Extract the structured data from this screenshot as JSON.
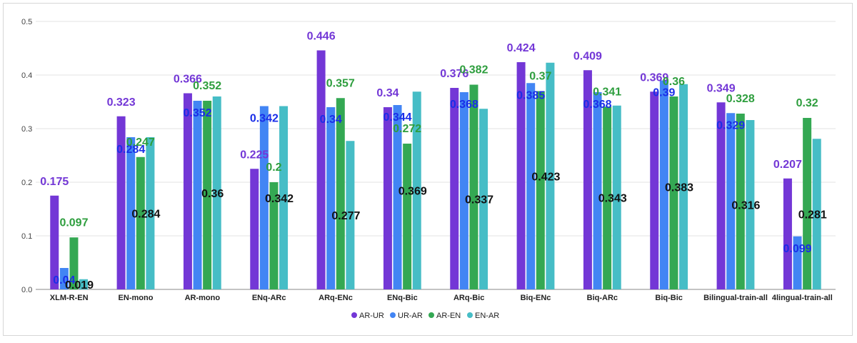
{
  "chart_data": {
    "type": "bar",
    "title": "",
    "xlabel": "",
    "ylabel": "",
    "ylim": [
      0,
      0.5
    ],
    "yticks": [
      "0.0",
      "0.1",
      "0.2",
      "0.3",
      "0.4",
      "0.5"
    ],
    "grid": true,
    "legend_position": "bottom",
    "categories": [
      "XLM-R-EN",
      "EN-mono",
      "AR-mono",
      "ENq-ARc",
      "ARq-ENc",
      "ENq-Bic",
      "ARq-Bic",
      "Biq-ENc",
      "Biq-ARc",
      "Biq-Bic",
      "Bilingual-train-all",
      "4lingual-train-all"
    ],
    "series": [
      {
        "name": "AR-UR",
        "color": "#7337d6",
        "label_color": "#7337d6",
        "values": [
          0.175,
          0.323,
          0.366,
          0.225,
          0.446,
          0.34,
          0.376,
          0.424,
          0.409,
          0.369,
          0.349,
          0.207
        ],
        "labels": [
          "0.175",
          "0.323",
          "0.366",
          "0.225",
          "0.446",
          "0.34",
          "0.376",
          "0.424",
          "0.409",
          "0.369",
          "0.349",
          "0.207"
        ]
      },
      {
        "name": "UR-AR",
        "color": "#4285f4",
        "label_color": "#1a2ee8",
        "values": [
          0.04,
          0.284,
          0.352,
          0.342,
          0.34,
          0.344,
          0.368,
          0.385,
          0.368,
          0.39,
          0.329,
          0.099
        ],
        "labels": [
          "0.04",
          "0.284",
          "0.352",
          "0.342",
          "0.34",
          "0.344",
          "0.368",
          "0.385",
          "0.368",
          "0.39",
          "0.329",
          "0.099"
        ]
      },
      {
        "name": "AR-EN",
        "color": "#34a853",
        "label_color": "#2e9e3e",
        "values": [
          0.097,
          0.247,
          0.352,
          0.2,
          0.357,
          0.272,
          0.382,
          0.37,
          0.341,
          0.36,
          0.328,
          0.32
        ],
        "labels": [
          "0.097",
          "0.247",
          "0.352",
          "0.2",
          "0.357",
          "0.272",
          "0.382",
          "0.37",
          "0.341",
          "0.36",
          "0.328",
          "0.32"
        ]
      },
      {
        "name": "EN-AR",
        "color": "#46bdc6",
        "label_color": "#111111",
        "values": [
          0.019,
          0.284,
          0.36,
          0.342,
          0.277,
          0.369,
          0.337,
          0.423,
          0.343,
          0.383,
          0.316,
          0.281
        ],
        "labels": [
          "0.019",
          "0.284",
          "0.36",
          "0.342",
          "0.277",
          "0.369",
          "0.337",
          "0.423",
          "0.343",
          "0.383",
          "0.316",
          "0.281"
        ]
      }
    ]
  }
}
